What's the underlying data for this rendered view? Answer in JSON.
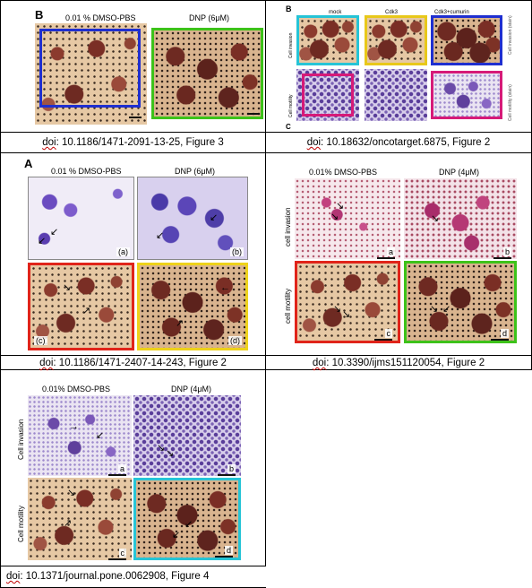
{
  "captions": [
    {
      "doi": "doi",
      "text": ": 10.1186/1471-2091-13-25, Figure 3"
    },
    {
      "doi": "doi",
      "text": ": 10.18632/oncotarget.6875, Figure 2"
    },
    {
      "doi": "doi",
      "text": ": 10.1186/1471-2407-14-243, Figure 2"
    },
    {
      "doi": "doi",
      "text": ": 10.3390/ijms151120054, Figure 2"
    },
    {
      "doi": "doi",
      "text": ": 10.1371/journal.pone.0062908, Figure 4"
    }
  ],
  "fig1": {
    "letter": "B",
    "left_label": "0.01 % DMSO-PBS",
    "right_label": "DNP (6μM)",
    "colors": {
      "left_box": "#1f2fd0",
      "right_box": "#3dc21a"
    }
  },
  "fig2": {
    "letter": "B",
    "col_labels": [
      "mock",
      "Cdk3",
      "Cdk3+cumurin"
    ],
    "row_labels": [
      "Cell invasion",
      "Cell motility"
    ],
    "right_labels": [
      "Cell invasion (stain)",
      "Cell motility (stain)"
    ],
    "bottom_letter": "C",
    "colors": {
      "cyan": "#26c4d6",
      "yellow": "#e8c81a",
      "blue": "#1f2fd0",
      "magenta": "#d61a78"
    }
  },
  "fig3": {
    "letter": "A",
    "left_label": "0.01 % DMSO-PBS",
    "right_label": "DNP (6μM)",
    "subs": [
      "(a)",
      "(b)",
      "(c)",
      "(d)"
    ],
    "colors": {
      "red": "#e0241a",
      "yellow": "#eed21a"
    }
  },
  "fig4": {
    "left_label": "0.01% DMSO-PBS",
    "right_label": "DNP (4μM)",
    "row_labels": [
      "cell invasion",
      "cell motility"
    ],
    "subs": [
      "a",
      "b",
      "c",
      "d"
    ],
    "colors": {
      "red": "#e0241a",
      "green": "#3dc21a"
    }
  },
  "fig5": {
    "left_label": "0.01% DMSO-PBS",
    "right_label": "DNP (4μM)",
    "row_labels": [
      "Cell invasion",
      "Cell motility"
    ],
    "subs": [
      "a",
      "b",
      "c",
      "d"
    ],
    "colors": {
      "cyan": "#26c4d6"
    }
  }
}
